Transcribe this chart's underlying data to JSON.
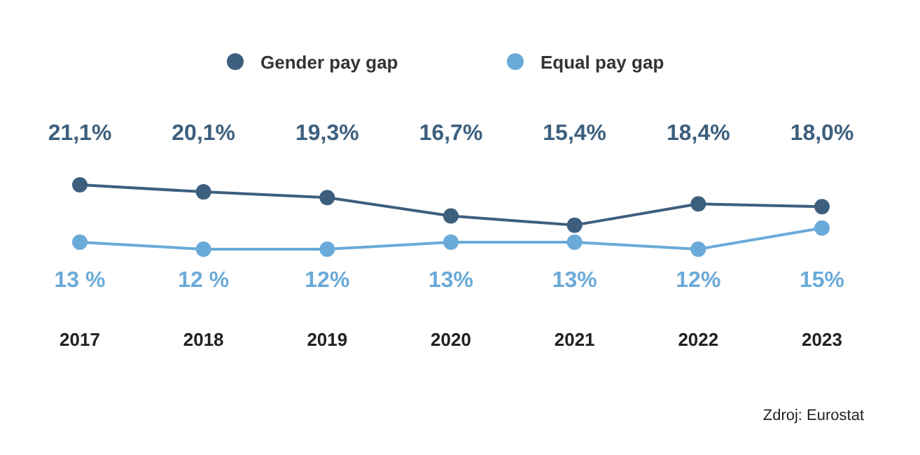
{
  "chart_data": {
    "type": "line",
    "categories": [
      "2017",
      "2018",
      "2019",
      "2020",
      "2021",
      "2022",
      "2023"
    ],
    "series": [
      {
        "name": "Gender pay gap",
        "color": "#3d5f7e",
        "values": [
          21.1,
          20.1,
          19.3,
          16.7,
          15.4,
          18.4,
          18.0
        ],
        "value_labels": [
          "21,1%",
          "20,1%",
          "19,3%",
          "16,7%",
          "15,4%",
          "18,4%",
          "18,0%"
        ]
      },
      {
        "name": "Equal pay gap",
        "color": "#6aaad8",
        "values": [
          13,
          12,
          12,
          13,
          13,
          12,
          15
        ],
        "value_labels": [
          "13 %",
          "12 %",
          "12%",
          "13%",
          "13%",
          "12%",
          "15%"
        ]
      }
    ],
    "legend": "top",
    "marker": "circle",
    "line_style": "solid",
    "annotations": [
      "Zdroj: Eurostat"
    ]
  }
}
